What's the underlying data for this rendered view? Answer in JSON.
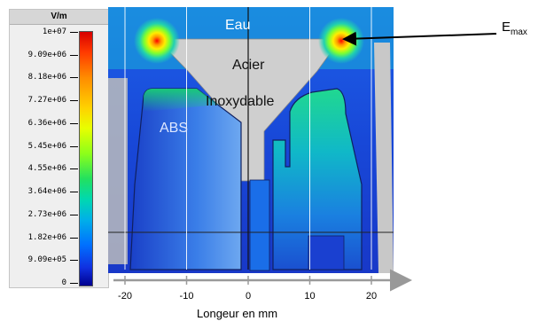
{
  "legend": {
    "unit": "V/m",
    "ticks": [
      "1e+07",
      "9.09e+06",
      "8.18e+06",
      "7.27e+06",
      "6.36e+06",
      "5.45e+06",
      "4.55e+06",
      "3.64e+06",
      "2.73e+06",
      "1.82e+06",
      "9.09e+05",
      "0"
    ]
  },
  "labels": {
    "water": "Eau",
    "steel_line1": "Acier",
    "steel_line2": "Inoxydable",
    "abs": "ABS",
    "emax_main": "E",
    "emax_sub": "max"
  },
  "x_axis": {
    "title": "Longeur en mm",
    "ticks": [
      {
        "value": -20,
        "label": "-20"
      },
      {
        "value": -10,
        "label": "-10"
      },
      {
        "value": 0,
        "label": "0"
      },
      {
        "value": 10,
        "label": "10"
      },
      {
        "value": 20,
        "label": "20"
      }
    ]
  },
  "colors": {
    "field_low": "#1a3cd8",
    "field_high": "#d80000",
    "steel": "#d0d0d0",
    "plastic": "#2e6fe0"
  }
}
